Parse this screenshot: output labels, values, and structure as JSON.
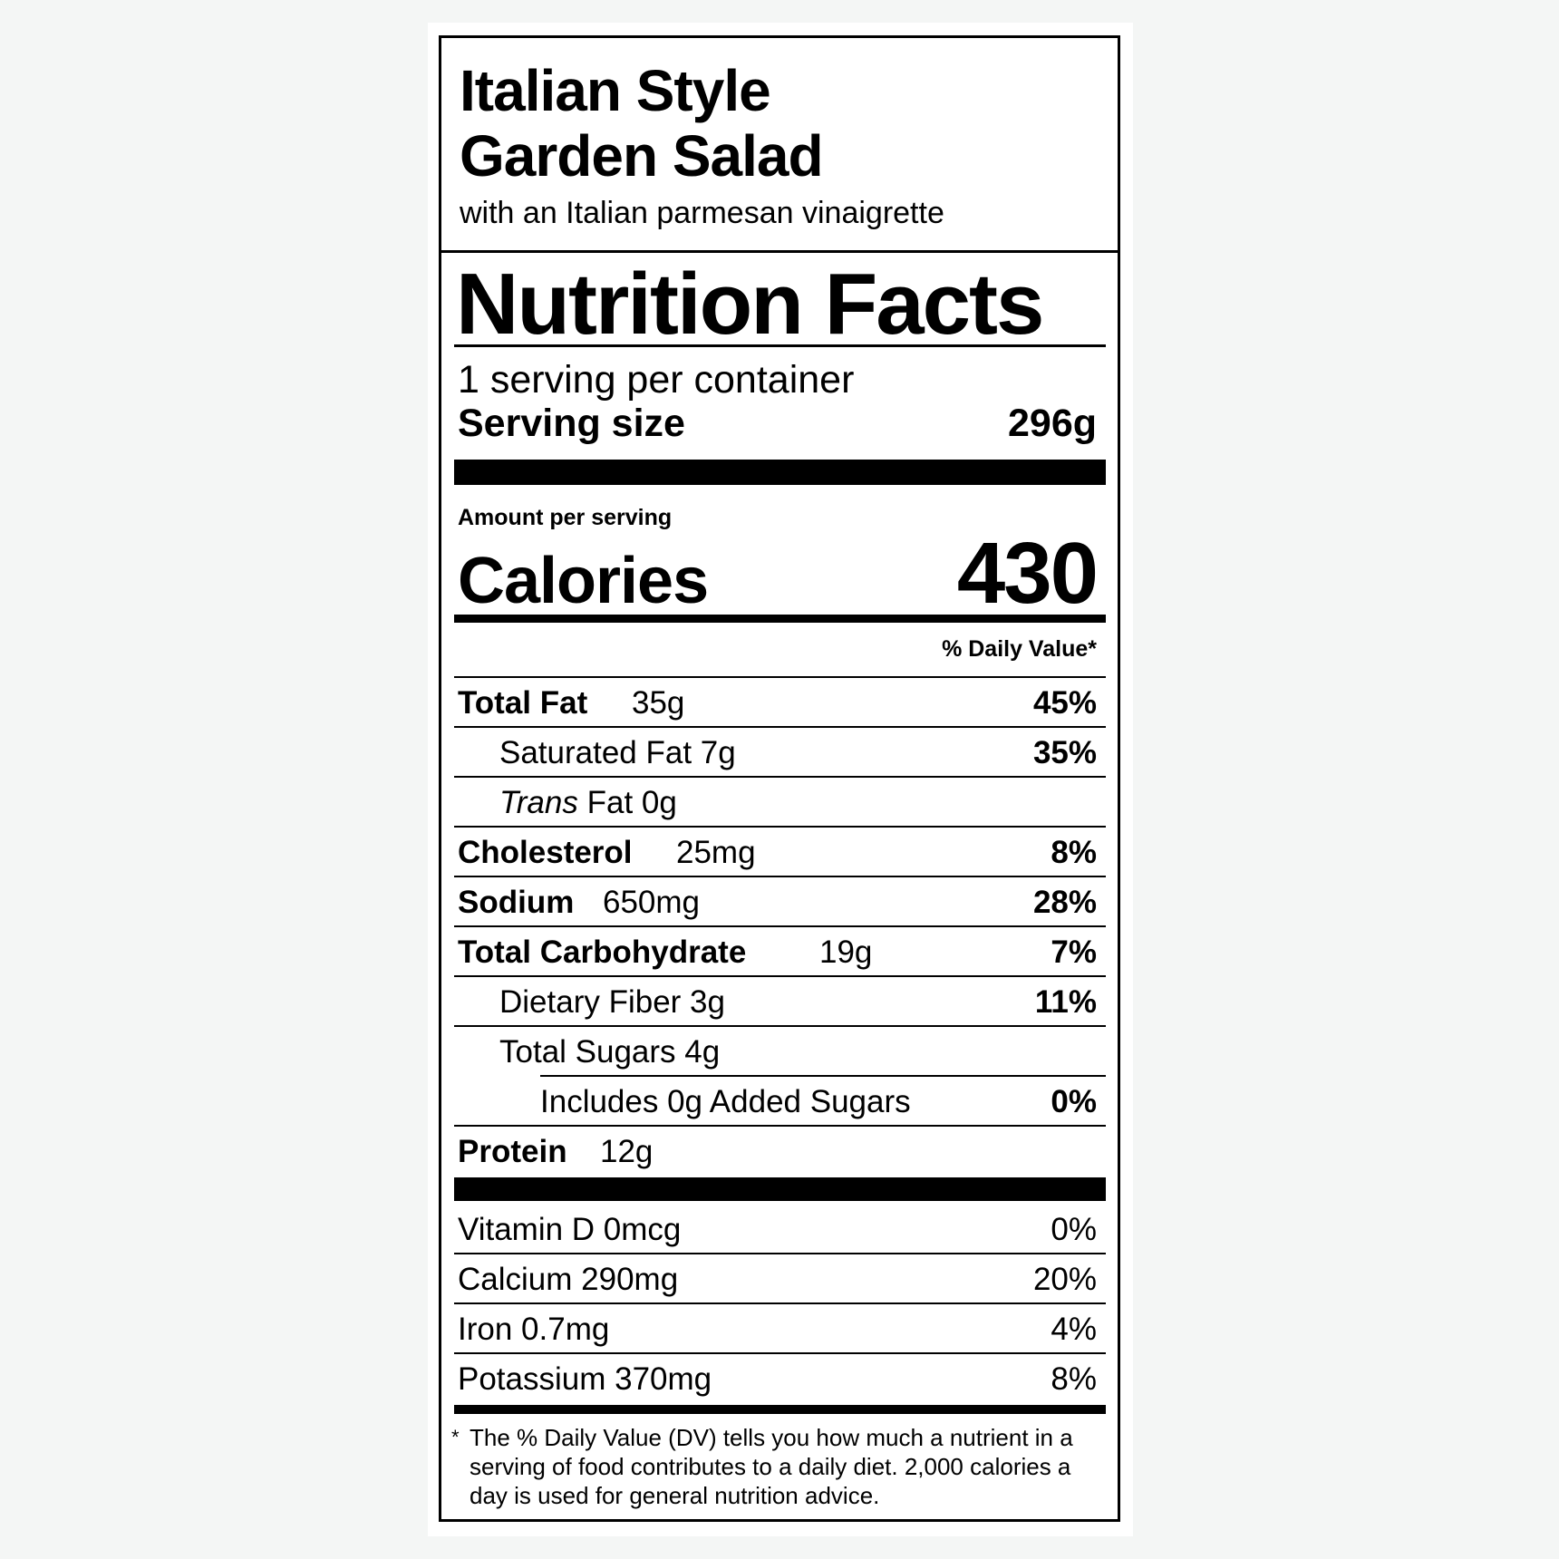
{
  "product": {
    "title_line1": "Italian Style",
    "title_line2": "Garden Salad",
    "subtitle": "with an Italian parmesan vinaigrette"
  },
  "label": {
    "heading": "Nutrition Facts",
    "servings_per_container": "1 serving per container",
    "serving_size_label": "Serving size",
    "serving_size_value": "296g",
    "amount_per_serving": "Amount per serving",
    "calories_label": "Calories",
    "calories_value": "430",
    "daily_value_header": "% Daily Value*"
  },
  "nutrients": [
    {
      "name": "Total Fat",
      "amount": "35g",
      "dv": "45%"
    },
    {
      "name": "Saturated Fat 7g",
      "amount": "",
      "dv": "35%"
    },
    {
      "name_italic": "Trans",
      "name": " Fat 0g",
      "amount": "",
      "dv": ""
    },
    {
      "name": "Cholesterol",
      "amount": "25mg",
      "dv": "8%"
    },
    {
      "name": "Sodium",
      "amount": "650mg",
      "dv": "28%"
    },
    {
      "name": "Total Carbohydrate",
      "amount": "19g",
      "dv": "7%"
    },
    {
      "name": "Dietary Fiber 3g",
      "amount": "",
      "dv": "11%"
    },
    {
      "name": "Total Sugars 4g",
      "amount": "",
      "dv": ""
    },
    {
      "name": "Includes 0g Added Sugars",
      "amount": "",
      "dv": "0%"
    },
    {
      "name": "Protein",
      "amount": "12g",
      "dv": ""
    }
  ],
  "vitamins": [
    {
      "name": "Vitamin D 0mcg",
      "dv": "0%"
    },
    {
      "name": "Calcium 290mg",
      "dv": "20%"
    },
    {
      "name": "Iron 0.7mg",
      "dv": "4%"
    },
    {
      "name": "Potassium 370mg",
      "dv": "8%"
    }
  ],
  "footnote": {
    "asterisk": "*",
    "text": "The % Daily Value (DV) tells you how much a nutrient in a serving of food contributes to a daily diet. 2,000 calories a day is used for general nutrition advice."
  }
}
